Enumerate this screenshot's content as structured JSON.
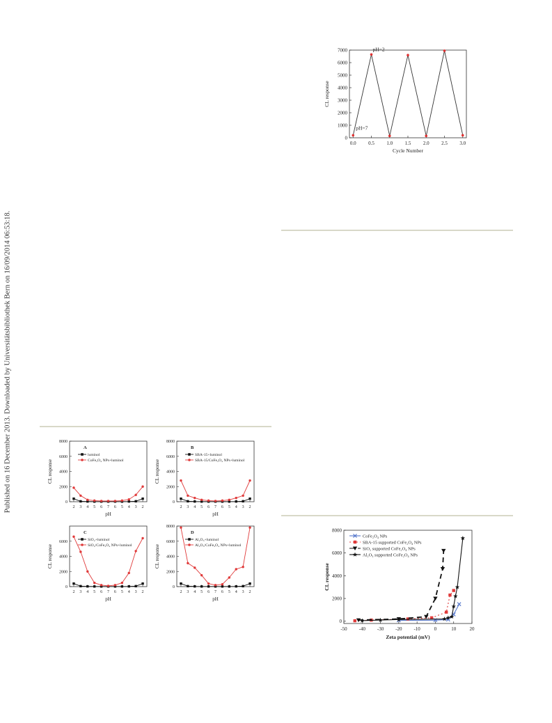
{
  "sidebar": {
    "text": "Published on 16 December 2013. Downloaded by Universitätsbibliothek Bern on 16/09/2014 06:53:18."
  },
  "chart_data": [
    {
      "id": "cycle",
      "type": "line",
      "xlabel": "Cycle Number",
      "ylabel": "CL response",
      "xlim": [
        -0.1,
        3.1
      ],
      "ylim": [
        0,
        7000
      ],
      "xticks": [
        "0.0",
        "0.5",
        "1.0",
        "1.5",
        "2.0",
        "2.5",
        "3.0"
      ],
      "yticks": [
        "0",
        "1000",
        "2000",
        "3000",
        "4000",
        "5000",
        "6000",
        "7000"
      ],
      "annotations": [
        "pH=2",
        "pH=7"
      ],
      "series": [
        {
          "x": [
            0,
            0.5,
            1,
            1.5,
            2,
            2.5,
            3
          ],
          "y": [
            200,
            6650,
            150,
            6600,
            150,
            6950,
            200
          ],
          "color": "#333333",
          "marker_color": "#e03030"
        }
      ]
    },
    {
      "id": "A",
      "type": "line",
      "panel_label": "A",
      "xlabel": "pH",
      "ylabel": "CL response",
      "ylim": [
        0,
        8000
      ],
      "yticks": [
        "0",
        "2000",
        "4000",
        "6000",
        "8000"
      ],
      "xticks": [
        "2",
        "3",
        "4",
        "5",
        "6",
        "7",
        "6",
        "5",
        "4",
        "3",
        "2"
      ],
      "series": [
        {
          "name": "luminol",
          "color": "#111111",
          "values": [
            400,
            50,
            30,
            20,
            20,
            20,
            20,
            20,
            30,
            60,
            400
          ]
        },
        {
          "name": "CoFe₂O₄ NPs+luminol",
          "color": "#e03a3a",
          "values": [
            1850,
            800,
            250,
            150,
            100,
            100,
            100,
            150,
            300,
            900,
            2000
          ]
        }
      ]
    },
    {
      "id": "B",
      "type": "line",
      "panel_label": "B",
      "xlabel": "pH",
      "ylabel": "CL response",
      "ylim": [
        0,
        8000
      ],
      "yticks": [
        "0",
        "2000",
        "4000",
        "6000",
        "8000"
      ],
      "xticks": [
        "2",
        "3",
        "4",
        "5",
        "6",
        "7",
        "6",
        "5",
        "4",
        "3",
        "2"
      ],
      "series": [
        {
          "name": "SBA-15+luminol",
          "color": "#111111",
          "values": [
            400,
            60,
            30,
            20,
            20,
            20,
            20,
            20,
            30,
            60,
            400
          ]
        },
        {
          "name": "SBA-15/CoFe₂O₄ NPs+luminol",
          "color": "#e03a3a",
          "values": [
            2800,
            800,
            500,
            250,
            150,
            100,
            150,
            250,
            500,
            800,
            2800
          ]
        }
      ]
    },
    {
      "id": "C",
      "type": "line",
      "panel_label": "C",
      "xlabel": "pH",
      "ylabel": "CL response",
      "ylim": [
        0,
        8000
      ],
      "yticks": [
        "0",
        "2000",
        "4000",
        "6000"
      ],
      "xticks": [
        "2",
        "3",
        "4",
        "5",
        "6",
        "7",
        "6",
        "5",
        "4",
        "3",
        "2"
      ],
      "series": [
        {
          "name": "SiO₂+luminol",
          "color": "#111111",
          "values": [
            400,
            60,
            30,
            20,
            20,
            20,
            20,
            20,
            30,
            60,
            400
          ]
        },
        {
          "name": "SiO₂/CoFe₂O₄ NPs+luminol",
          "color": "#e03a3a",
          "values": [
            6600,
            4600,
            2000,
            500,
            200,
            100,
            200,
            500,
            1800,
            4700,
            6400
          ]
        }
      ]
    },
    {
      "id": "D",
      "type": "line",
      "panel_label": "D",
      "xlabel": "pH",
      "ylabel": "CL response",
      "ylim": [
        0,
        8000
      ],
      "yticks": [
        "0",
        "2000",
        "4000",
        "6000",
        "8000"
      ],
      "xticks": [
        "2",
        "3",
        "4",
        "5",
        "6",
        "7",
        "6",
        "5",
        "4",
        "3",
        "2"
      ],
      "series": [
        {
          "name": "Al₂O₃+luminol",
          "color": "#111111",
          "values": [
            400,
            60,
            30,
            20,
            20,
            20,
            20,
            20,
            30,
            60,
            400
          ]
        },
        {
          "name": "Al₂O₃/CoFe₂O₄ NPs+luminol",
          "color": "#e03a3a",
          "values": [
            7800,
            3100,
            2500,
            1500,
            400,
            200,
            300,
            1200,
            2300,
            2600,
            7800
          ]
        }
      ]
    },
    {
      "id": "zeta",
      "type": "line",
      "xlabel": "Zeta potential (mV)",
      "ylabel": "CL response",
      "xlim": [
        -50,
        20
      ],
      "ylim": [
        -200,
        8000
      ],
      "xticks": [
        "-50",
        "-40",
        "-30",
        "-20",
        "-10",
        "0",
        "10",
        "20"
      ],
      "yticks": [
        "0",
        "2000",
        "4000",
        "6000",
        "8000"
      ],
      "legend": "top-left",
      "series": [
        {
          "name": "CoFe₂O₄ NPs",
          "color": "#5577cc",
          "dash": "",
          "marker": "x",
          "x": [
            -20,
            0,
            7,
            10,
            13
          ],
          "y": [
            80,
            90,
            150,
            600,
            1500
          ]
        },
        {
          "name": "SBA-15 supported CoFe₂O₄ NPs",
          "color": "#e03a3a",
          "dash": "2,3",
          "marker": "square",
          "x": [
            -44,
            -35,
            -15,
            -2,
            6,
            8,
            10
          ],
          "y": [
            40,
            100,
            200,
            300,
            800,
            2300,
            2700
          ]
        },
        {
          "name": "SiO₂ supported CoFe₂O₄ NPs",
          "color": "#111111",
          "dash": "7,5",
          "marker": "tri-down",
          "x": [
            -42,
            -20,
            -5,
            0,
            4,
            4.5
          ],
          "y": [
            100,
            200,
            400,
            2000,
            4600,
            6200
          ]
        },
        {
          "name": "Al₂O₃ supported CoFe₂O₄ NPs",
          "color": "#111111",
          "dash": "",
          "marker": "star",
          "x": [
            -40,
            -30,
            -20,
            5,
            7,
            9,
            10,
            11,
            12,
            15
          ],
          "y": [
            50,
            100,
            150,
            200,
            300,
            400,
            1300,
            2200,
            3000,
            7300
          ]
        }
      ]
    }
  ]
}
